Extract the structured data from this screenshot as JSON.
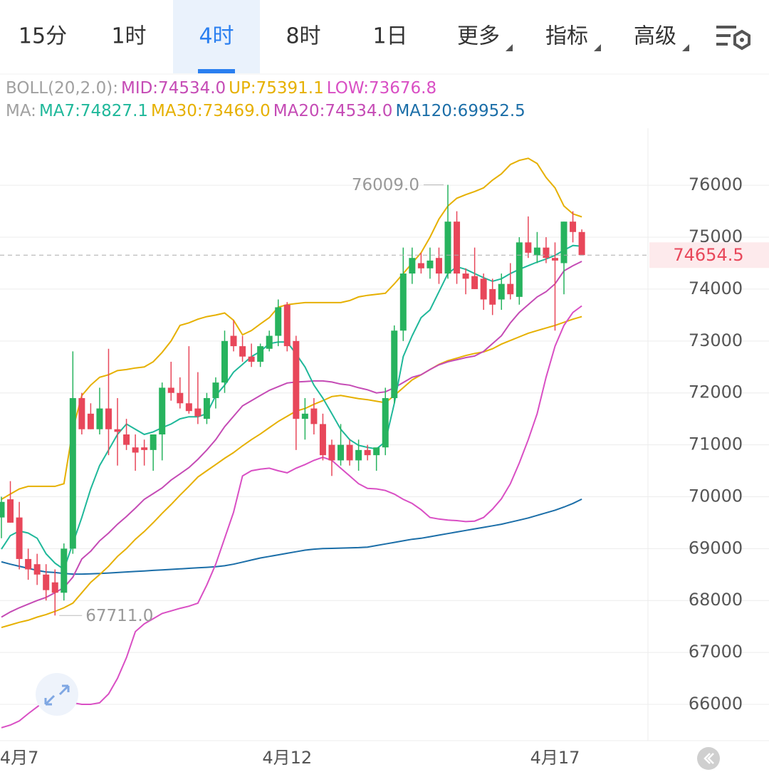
{
  "tabs": [
    "15分",
    "1时",
    "4时",
    "8时",
    "1日"
  ],
  "menus": [
    "更多",
    "指标",
    "高级"
  ],
  "active_tab": 2,
  "chart_data": {
    "type": "candlestick",
    "legend_rows": [
      {
        "label": "BOLL(20,2.0):",
        "items": [
          {
            "text": "MID:74534.0",
            "color": "#c54bb5"
          },
          {
            "text": "UP:75391.1",
            "color": "#e6b000"
          },
          {
            "text": "LOW:73676.8",
            "color": "#d94fc4"
          }
        ]
      },
      {
        "label": "MA:",
        "items": [
          {
            "text": "MA7:74827.1",
            "color": "#1fb89a"
          },
          {
            "text": "MA30:73469.0",
            "color": "#e6b000"
          },
          {
            "text": "MA20:74534.0",
            "color": "#c54bb5"
          },
          {
            "text": "MA120:69952.5",
            "color": "#1b6ea8"
          }
        ]
      }
    ],
    "categories": [
      null,
      null,
      "4月7",
      null,
      null,
      null,
      null,
      null,
      null,
      null,
      null,
      null,
      null,
      null,
      null,
      null,
      null,
      null,
      null,
      null,
      null,
      null,
      null,
      null,
      null,
      null,
      null,
      null,
      null,
      null,
      null,
      null,
      "4月12",
      null,
      null,
      null,
      null,
      null,
      null,
      null,
      null,
      null,
      null,
      null,
      null,
      null,
      null,
      null,
      null,
      null,
      null,
      null,
      null,
      null,
      null,
      null,
      null,
      null,
      null,
      null,
      null,
      null,
      "4月17",
      null,
      null,
      null
    ],
    "open": [
      69600,
      69950,
      69600,
      68800,
      68700,
      68500,
      68350,
      68150,
      69000,
      71900,
      71600,
      71300,
      71700,
      71300,
      71200,
      70950,
      70950,
      70900,
      71200,
      72100,
      72000,
      71800,
      71700,
      71500,
      71900,
      72200,
      73100,
      72900,
      72700,
      72600,
      72850,
      73100,
      73700,
      73000,
      71500,
      71700,
      71400,
      71000,
      70700,
      71000,
      70700,
      70900,
      70800,
      70950,
      71900,
      73200,
      74300,
      74500,
      74400,
      74600,
      74300,
      75300,
      74300,
      74250,
      74200,
      74000,
      73800,
      74100,
      73850,
      74900,
      74650,
      74800,
      74600,
      74500,
      75300,
      75100
    ],
    "high": [
      70000,
      70300,
      69900,
      69000,
      68900,
      68700,
      68600,
      69100,
      72800,
      72000,
      71800,
      72100,
      72850,
      71900,
      71500,
      71200,
      71100,
      71200,
      72200,
      72600,
      72300,
      72900,
      72400,
      72000,
      72300,
      73200,
      73400,
      73100,
      72950,
      72950,
      73200,
      73800,
      73750,
      73100,
      71900,
      71900,
      71600,
      71100,
      71400,
      71100,
      71100,
      71000,
      70900,
      72100,
      73300,
      74800,
      74800,
      74700,
      74800,
      74800,
      76009,
      75500,
      74400,
      74800,
      74300,
      74200,
      74300,
      74500,
      75000,
      75400,
      75100,
      75000,
      74900,
      75300,
      75500,
      75150
    ],
    "low": [
      69200,
      69500,
      68600,
      68400,
      68300,
      68000,
      67711,
      68000,
      68900,
      71200,
      71300,
      71200,
      70800,
      70600,
      70900,
      70500,
      70600,
      70500,
      70700,
      71850,
      71700,
      71600,
      71400,
      71400,
      71700,
      72000,
      72800,
      72600,
      72500,
      72500,
      72800,
      72900,
      72800,
      70900,
      71100,
      71200,
      70700,
      70400,
      70600,
      70600,
      70500,
      70700,
      70500,
      70800,
      71800,
      73000,
      74100,
      74300,
      74200,
      74100,
      74200,
      74100,
      73900,
      74000,
      73600,
      73500,
      73600,
      73800,
      73700,
      74600,
      74500,
      74500,
      73200,
      73900,
      74900,
      74650
    ],
    "close": [
      69900,
      69500,
      68800,
      68600,
      68500,
      68200,
      68150,
      69000,
      71900,
      71300,
      71300,
      71700,
      71300,
      71250,
      71000,
      70850,
      70900,
      71200,
      72100,
      72000,
      71800,
      71650,
      71550,
      71900,
      72200,
      73000,
      72900,
      72700,
      72600,
      72900,
      73100,
      73650,
      72900,
      71500,
      71600,
      71400,
      70800,
      70700,
      71000,
      70700,
      70900,
      70800,
      70950,
      71900,
      73200,
      74300,
      74600,
      74400,
      74550,
      74300,
      75300,
      74300,
      74200,
      74000,
      73800,
      73700,
      74100,
      73900,
      74900,
      74700,
      74800,
      74600,
      74550,
      75300,
      75100,
      74654.5
    ],
    "up_color": "#27b35e",
    "down_color": "#e8475a",
    "lines": [
      {
        "color": "#1b6ea8",
        "values": [
          68745,
          68700,
          68660,
          68620,
          68580,
          68550,
          68540,
          68520,
          68510,
          68510,
          68515,
          68520,
          68530,
          68540,
          68550,
          68560,
          68570,
          68580,
          68590,
          68600,
          68610,
          68620,
          68630,
          68640,
          68650,
          68670,
          68700,
          68740,
          68780,
          68820,
          68850,
          68880,
          68910,
          68940,
          68970,
          68990,
          69000,
          69005,
          69010,
          69015,
          69020,
          69030,
          69060,
          69090,
          69120,
          69150,
          69180,
          69200,
          69230,
          69260,
          69290,
          69320,
          69350,
          69380,
          69410,
          69440,
          69470,
          69510,
          69550,
          69590,
          69640,
          69690,
          69740,
          69800,
          69870,
          69952.5
        ]
      },
      {
        "color": "#e6b000",
        "values": [
          67480,
          67530,
          67580,
          67620,
          67680,
          67730,
          67790,
          67860,
          67950,
          68150,
          68350,
          68500,
          68660,
          68850,
          69000,
          69180,
          69330,
          69500,
          69680,
          69850,
          70030,
          70200,
          70380,
          70500,
          70620,
          70740,
          70850,
          70980,
          71100,
          71210,
          71330,
          71450,
          71550,
          71650,
          71700,
          71780,
          71850,
          71930,
          71950,
          71920,
          71890,
          71870,
          71840,
          71810,
          71950,
          72100,
          72250,
          72350,
          72450,
          72550,
          72620,
          72670,
          72720,
          72760,
          72790,
          72850,
          72940,
          73010,
          73080,
          73150,
          73200,
          73250,
          73300,
          73360,
          73420,
          73469
        ]
      },
      {
        "color": "#d94fc4",
        "values": [
          65550,
          65600,
          65680,
          65820,
          65950,
          66080,
          66200,
          66300,
          66030,
          66000,
          66000,
          66030,
          66200,
          66500,
          66900,
          67400,
          67550,
          67650,
          67750,
          67800,
          67850,
          67890,
          67950,
          68300,
          68700,
          69200,
          69700,
          70400,
          70500,
          70530,
          70550,
          70500,
          70460,
          70550,
          70620,
          70700,
          70760,
          70700,
          70550,
          70400,
          70250,
          70160,
          70150,
          70120,
          70050,
          69950,
          69870,
          69750,
          69600,
          69570,
          69550,
          69540,
          69520,
          69530,
          69600,
          69760,
          69960,
          70250,
          70650,
          71100,
          71600,
          72300,
          72900,
          73300,
          73550,
          73676.8
        ]
      },
      {
        "color": "#e6b000",
        "values": [
          69950,
          70050,
          70150,
          70200,
          70200,
          70200,
          70200,
          70250,
          71300,
          71950,
          72150,
          72300,
          72350,
          72430,
          72450,
          72480,
          72500,
          72600,
          72780,
          73000,
          73300,
          73350,
          73420,
          73470,
          73500,
          73540,
          73400,
          73120,
          73200,
          73330,
          73450,
          73650,
          73700,
          73720,
          73740,
          73740,
          73740,
          73740,
          73740,
          73780,
          73850,
          73880,
          73900,
          73920,
          74100,
          74300,
          74500,
          74700,
          75000,
          75350,
          75600,
          75750,
          75820,
          75880,
          75950,
          76100,
          76220,
          76400,
          76480,
          76520,
          76420,
          76150,
          75950,
          75600,
          75450,
          75391.1
        ]
      },
      {
        "color": "#c54bb5",
        "values": [
          67680,
          67780,
          67860,
          67930,
          68000,
          68060,
          68150,
          68250,
          68450,
          68800,
          68950,
          69150,
          69300,
          69470,
          69620,
          69780,
          69950,
          70060,
          70170,
          70320,
          70440,
          70560,
          70720,
          70900,
          71100,
          71350,
          71550,
          71750,
          71850,
          71950,
          72050,
          72120,
          72190,
          72210,
          72220,
          72230,
          72230,
          72210,
          72170,
          72150,
          72100,
          72060,
          72000,
          72020,
          72100,
          72200,
          72300,
          72350,
          72450,
          72540,
          72600,
          72640,
          72680,
          72710,
          72800,
          72950,
          73100,
          73350,
          73550,
          73700,
          73850,
          73950,
          74100,
          74350,
          74450,
          74534
        ]
      },
      {
        "color": "#1fb89a",
        "values": [
          68990,
          69250,
          69340,
          69300,
          69200,
          68900,
          68720,
          68600,
          69100,
          69600,
          70150,
          70600,
          70900,
          71200,
          71400,
          71300,
          71200,
          71250,
          71330,
          71400,
          71500,
          71540,
          71540,
          71600,
          71950,
          72150,
          72400,
          72550,
          72700,
          72800,
          72950,
          72980,
          72980,
          72750,
          72500,
          72150,
          71900,
          71600,
          71300,
          71100,
          70990,
          70950,
          70920,
          71060,
          71800,
          72700,
          73100,
          73450,
          73600,
          73950,
          74300,
          74430,
          74380,
          74300,
          74220,
          74150,
          74200,
          74300,
          74380,
          74450,
          74520,
          74580,
          74650,
          74750,
          74840,
          74827.1
        ]
      }
    ],
    "annotations": [
      {
        "value": 76009,
        "label": "76009.0"
      },
      {
        "value": 67711,
        "label": "67711.0"
      }
    ],
    "last_price": 74654.5,
    "ylim": [
      65300,
      77100
    ],
    "yticks": [
      66000,
      67000,
      68000,
      69000,
      70000,
      71000,
      72000,
      73000,
      74000,
      75000,
      76000
    ],
    "grid": true
  }
}
